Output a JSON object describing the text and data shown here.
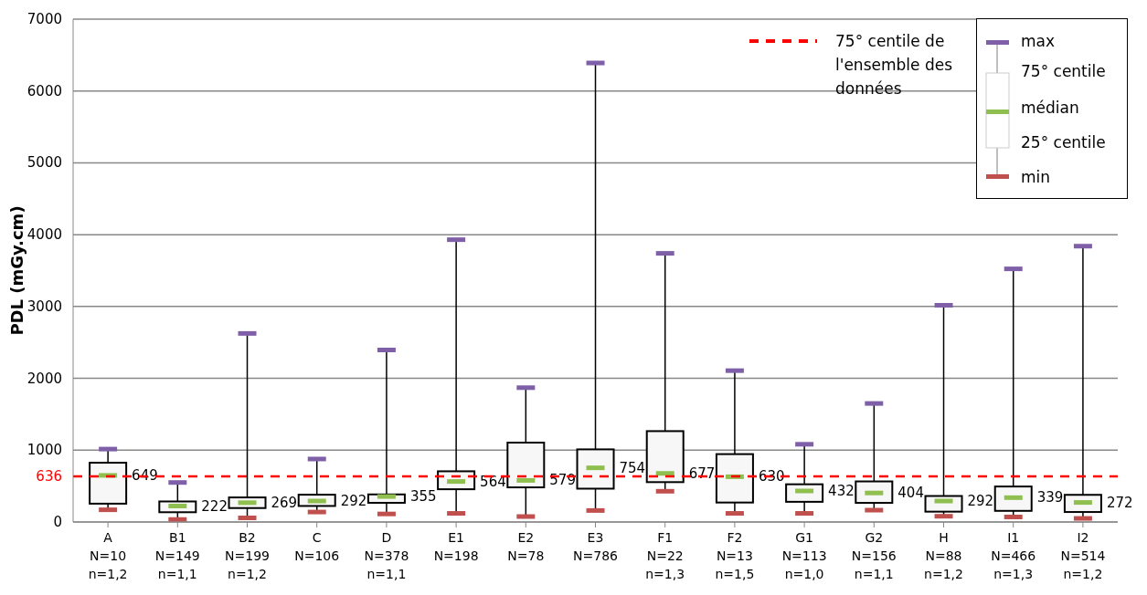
{
  "chart_data": {
    "type": "box",
    "ylabel": "PDL (mGy.cm)",
    "categories": [
      "A\nN=10\nn=1,2",
      "B1\nN=149\nn=1,1",
      "B2\nN=199\nn=1,2",
      "C\nN=106",
      "D\nN=378\nn=1,1",
      "E1\nN=198",
      "E2\nN=78",
      "E3\nN=786",
      "F1\nN=22\nn=1,3",
      "F2\nN=13\nn=1,5",
      "G1\nN=113\nn=1,0",
      "G2\nN=156\nn=1,1",
      "H\nN=88\nn=1,2",
      "I1\nN=466\nn=1,3",
      "I2\nN=514\nn=1,2"
    ],
    "boxes": [
      {
        "low": 170,
        "q1": 255,
        "median": 649,
        "q3": 825,
        "high": 1015
      },
      {
        "low": 35,
        "q1": 136,
        "median": 222,
        "q3": 286,
        "high": 550
      },
      {
        "low": 57,
        "q1": 194,
        "median": 269,
        "q3": 342,
        "high": 2625
      },
      {
        "low": 139,
        "q1": 223,
        "median": 292,
        "q3": 380,
        "high": 877
      },
      {
        "low": 112,
        "q1": 267,
        "median": 355,
        "q3": 384,
        "high": 2395
      },
      {
        "low": 120,
        "q1": 456,
        "median": 564,
        "q3": 706,
        "high": 3930
      },
      {
        "low": 76,
        "q1": 482,
        "median": 579,
        "q3": 1105,
        "high": 1870
      },
      {
        "low": 160,
        "q1": 464,
        "median": 754,
        "q3": 1011,
        "high": 6390
      },
      {
        "low": 428,
        "q1": 555,
        "median": 677,
        "q3": 1265,
        "high": 3740
      },
      {
        "low": 120,
        "q1": 271,
        "median": 630,
        "q3": 945,
        "high": 2107
      },
      {
        "low": 120,
        "q1": 281,
        "median": 432,
        "q3": 525,
        "high": 1082
      },
      {
        "low": 165,
        "q1": 266,
        "median": 404,
        "q3": 565,
        "high": 1650
      },
      {
        "low": 80,
        "q1": 144,
        "median": 292,
        "q3": 362,
        "high": 3017
      },
      {
        "low": 70,
        "q1": 155,
        "median": 339,
        "q3": 494,
        "high": 3524
      },
      {
        "low": 50,
        "q1": 139,
        "median": 272,
        "q3": 378,
        "high": 3840
      }
    ],
    "ylim": [
      0,
      7000
    ],
    "yticks": [
      0,
      {
        "value": 636,
        "label": "636"
      },
      1000,
      2000,
      3000,
      4000,
      5000,
      6000,
      7000
    ],
    "ref_lines": [
      {
        "axis": "y",
        "value": 636,
        "label": "75° centile de l'ensemble des données",
        "color": "#ff0000",
        "line_style": "dashed"
      }
    ],
    "annotations": [
      "max",
      "75° centile",
      "médian",
      "25° centile",
      "min"
    ],
    "value_labels": [
      "649",
      "222",
      "269",
      "292",
      "355",
      "564",
      "579",
      "754",
      "677",
      "630",
      "432",
      "404",
      "292",
      "339",
      "272"
    ],
    "grid": "y",
    "legend": "top right"
  }
}
